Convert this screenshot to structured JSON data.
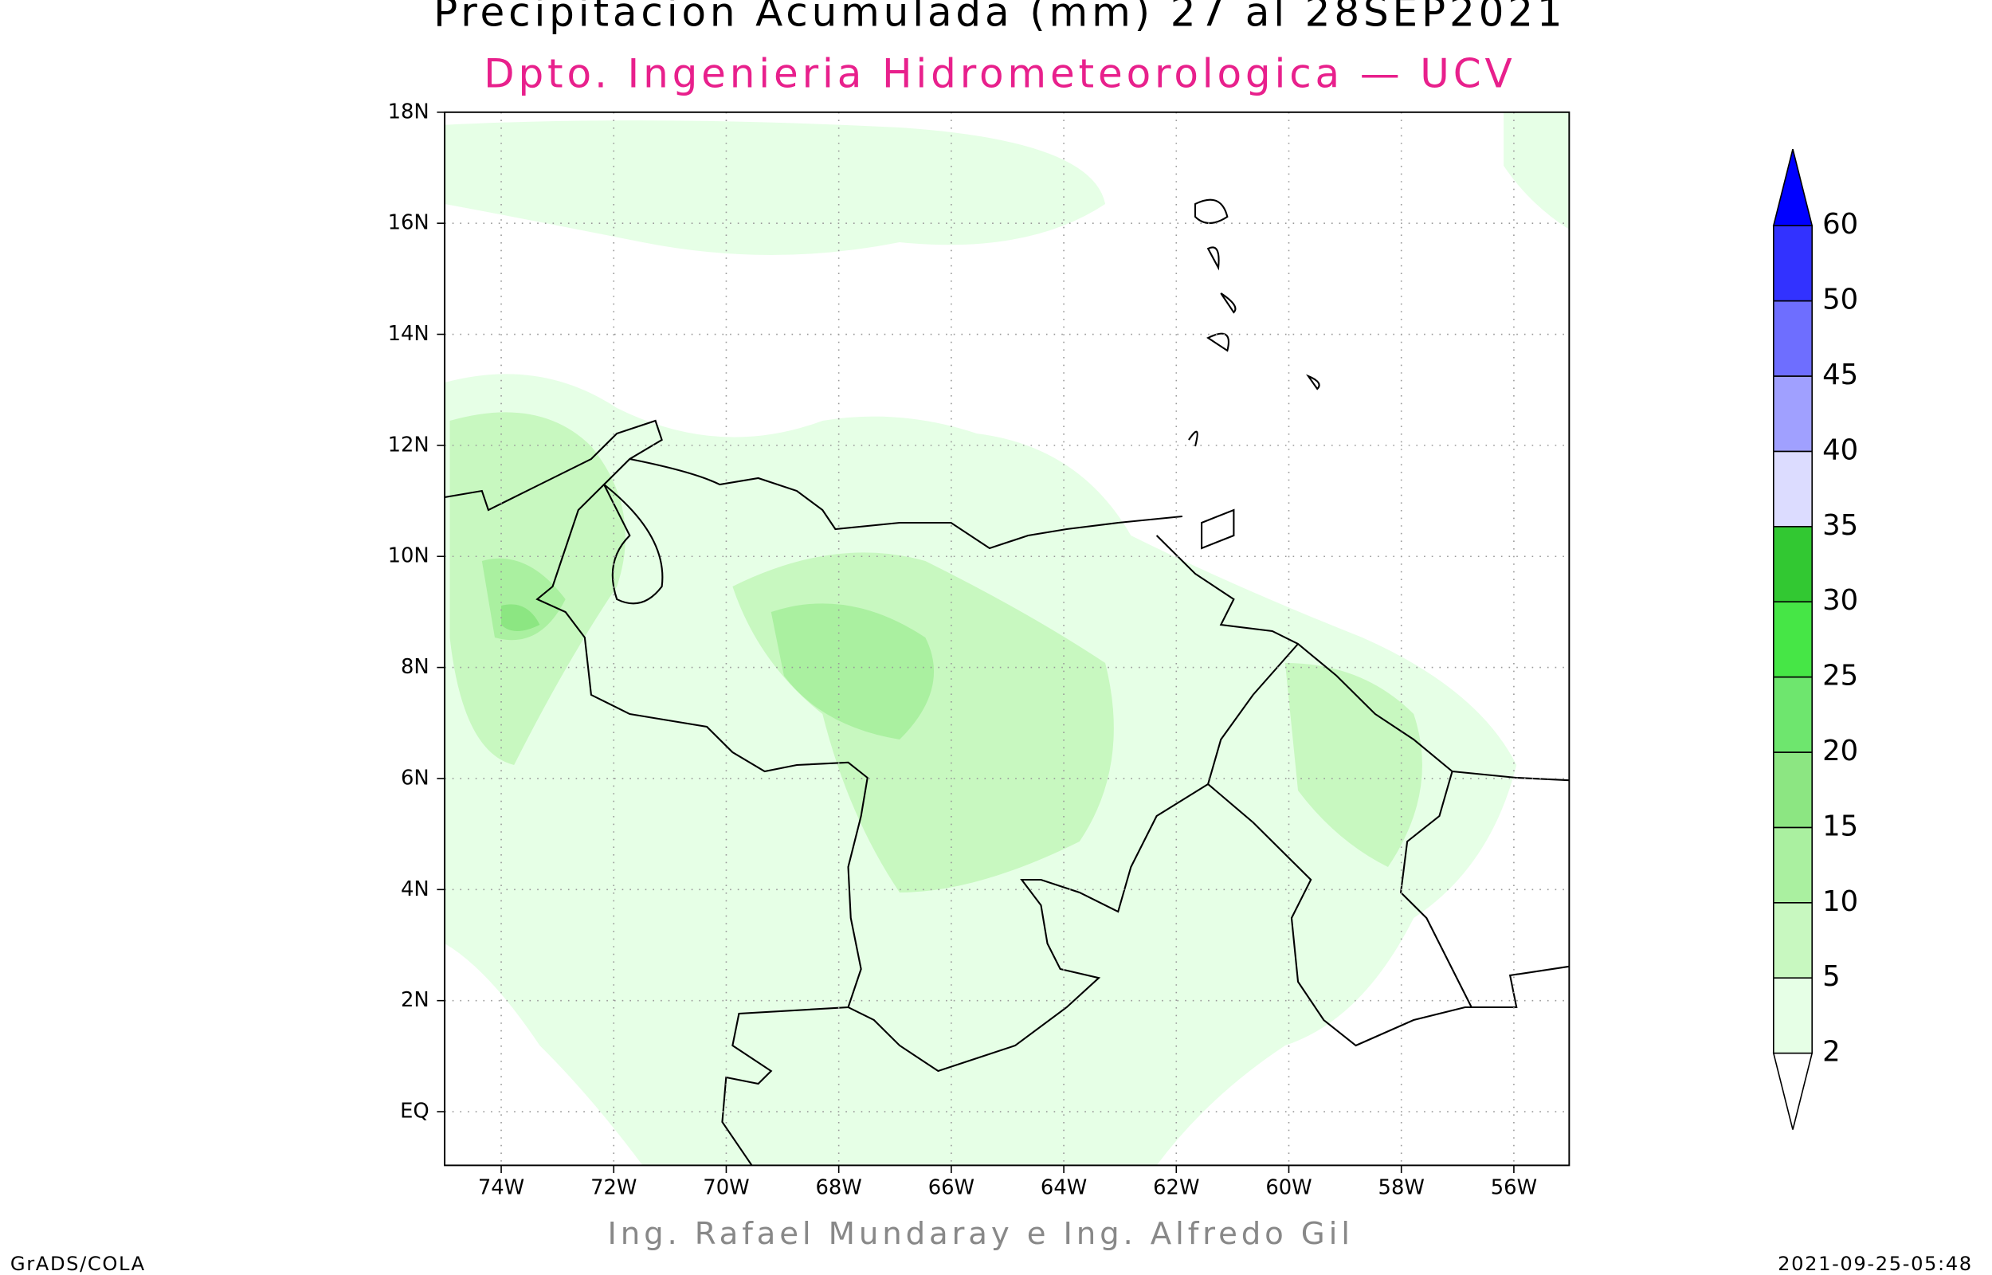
{
  "header": {
    "title": "Precipitacion Acumulada (mm) 27 al 28SEP2021",
    "subtitle": "Dpto. Ingenieria Hidrometeorologica — UCV"
  },
  "map": {
    "lat_labels": [
      "18N",
      "16N",
      "14N",
      "12N",
      "10N",
      "8N",
      "6N",
      "4N",
      "2N",
      "EQ"
    ],
    "lon_labels": [
      "74W",
      "72W",
      "70W",
      "68W",
      "66W",
      "64W",
      "62W",
      "60W",
      "58W",
      "56W"
    ]
  },
  "colorbar": {
    "levels": [
      2,
      5,
      10,
      15,
      20,
      25,
      30,
      35,
      40,
      45,
      50,
      60
    ],
    "colors": [
      "#ffffff",
      "#e6ffe6",
      "#c8f8c0",
      "#aaf0a0",
      "#8ce682",
      "#6ee66e",
      "#46e646",
      "#32c832",
      "#dcdcff",
      "#a0a0ff",
      "#6e6eff",
      "#3232ff",
      "#0000ff"
    ]
  },
  "footer": {
    "credit": "Ing. Rafael Mundaray e Ing. Alfredo Gil",
    "software": "GrADS/COLA",
    "timestamp": "2021-09-25-05:48"
  }
}
